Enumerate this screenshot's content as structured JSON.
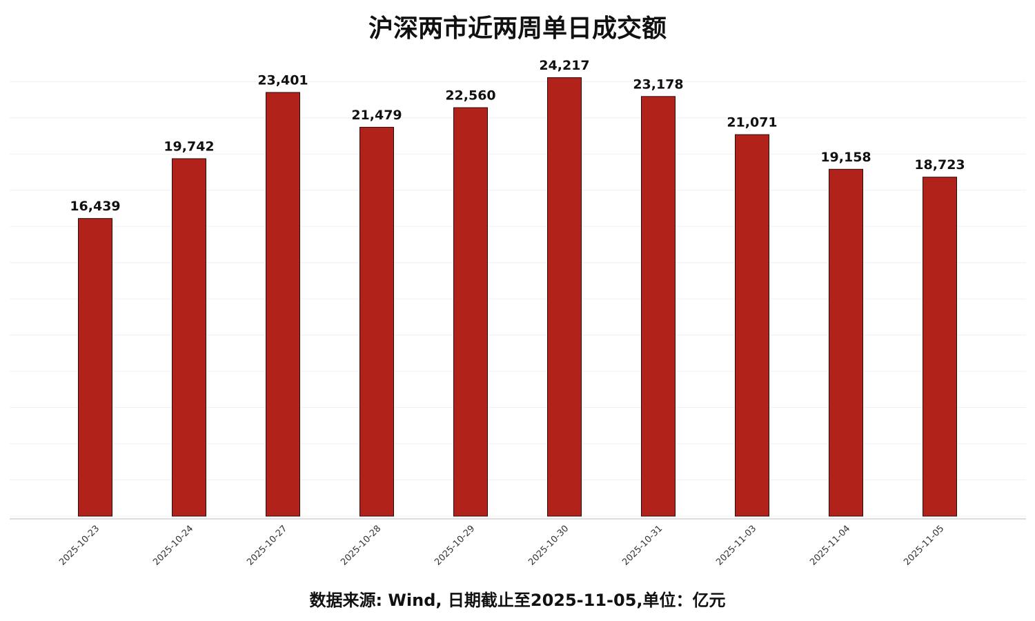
{
  "chart_data": {
    "type": "bar",
    "title": "沪深两市近两周单日成交额",
    "categories": [
      "2025-10-23",
      "2025-10-24",
      "2025-10-27",
      "2025-10-28",
      "2025-10-29",
      "2025-10-30",
      "2025-10-31",
      "2025-11-03",
      "2025-11-04",
      "2025-11-05"
    ],
    "values": [
      16439,
      19742,
      23401,
      21479,
      22560,
      24217,
      23178,
      21071,
      19158,
      18723
    ],
    "value_labels": [
      "16,439",
      "19,742",
      "23,401",
      "21,479",
      "22,560",
      "24,217",
      "23,178",
      "21,071",
      "19,158",
      "18,723"
    ],
    "color": "#b0221a",
    "ylim": [
      0,
      25000
    ],
    "yticks": [
      0,
      2000,
      4000,
      6000,
      8000,
      10000,
      12000,
      14000,
      16000,
      18000,
      20000,
      22000,
      24000
    ],
    "grid": true,
    "note": "数据来源: Wind, 日期截止至2025-11-05,单位：亿元"
  }
}
